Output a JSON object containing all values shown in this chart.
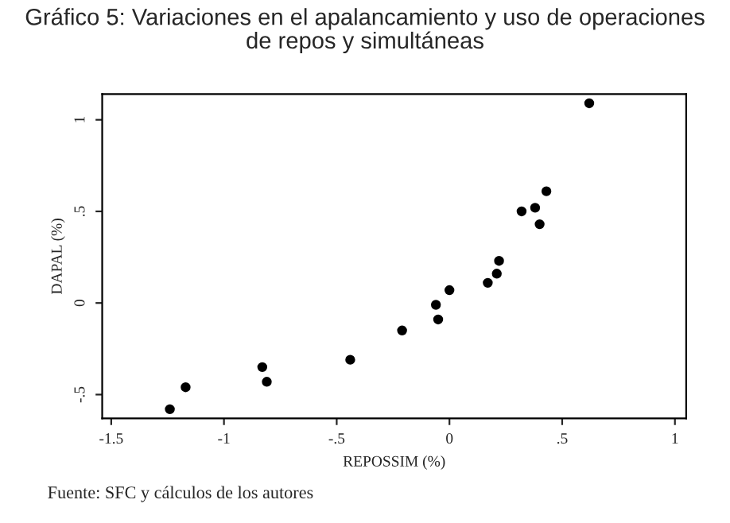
{
  "chart_data": {
    "type": "scatter",
    "title": "Gráfico 5: Variaciones en el apalancamiento y uso de operaciones\nde repos y simultáneas",
    "xlabel": "REPOSSIM (%)",
    "ylabel": "DAPAL (%)",
    "x": [
      -1.24,
      -1.17,
      -0.83,
      -0.81,
      -0.44,
      -0.21,
      -0.06,
      -0.05,
      0.0,
      0.17,
      0.21,
      0.22,
      0.32,
      0.38,
      0.4,
      0.43,
      0.62
    ],
    "series": [
      {
        "color": "#000000",
        "values": [
          -0.58,
          -0.46,
          -0.35,
          -0.43,
          -0.31,
          -0.15,
          -0.01,
          -0.09,
          0.07,
          0.11,
          0.16,
          0.23,
          0.5,
          0.52,
          0.43,
          0.61,
          1.09
        ]
      }
    ],
    "xlim": [
      -1.54,
      1.05
    ],
    "ylim": [
      -0.63,
      1.14
    ],
    "xticks": [
      {
        "value": -1.5,
        "label": "-1.5"
      },
      {
        "value": -1,
        "label": "-1"
      },
      {
        "value": -0.5,
        "label": "-.5"
      },
      {
        "value": 0,
        "label": "0"
      },
      {
        "value": 0.5,
        "label": ".5"
      },
      {
        "value": 1,
        "label": "1"
      }
    ],
    "yticks": [
      {
        "value": -0.5,
        "label": "-.5"
      },
      {
        "value": 0,
        "label": "0"
      },
      {
        "value": 0.5,
        "label": ".5"
      },
      {
        "value": 1,
        "label": "1"
      }
    ],
    "grid": false,
    "marker": "circle",
    "annotations": [
      "Fuente: SFC y cálculos de los autores"
    ]
  }
}
